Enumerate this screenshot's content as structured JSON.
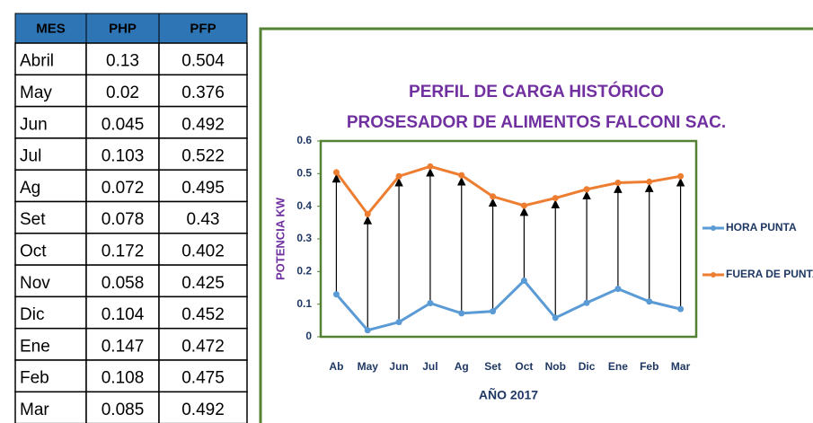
{
  "table": {
    "header": [
      "MES",
      "PHP",
      "PFP"
    ],
    "rows": [
      [
        "Abril",
        0.13,
        0.504
      ],
      [
        "May",
        0.02,
        0.376
      ],
      [
        "Jun",
        0.045,
        0.492
      ],
      [
        "Jul",
        0.103,
        0.522
      ],
      [
        "Ag",
        0.072,
        0.495
      ],
      [
        "Set",
        0.078,
        0.43
      ],
      [
        "Oct",
        0.172,
        0.402
      ],
      [
        "Nov",
        0.058,
        0.425
      ],
      [
        "Dic",
        0.104,
        0.452
      ],
      [
        "Ene",
        0.147,
        0.472
      ],
      [
        "Feb",
        0.108,
        0.475
      ],
      [
        "Mar",
        0.085,
        0.492
      ]
    ]
  },
  "chart_data": {
    "type": "line",
    "title": [
      "PERFIL DE CARGA HISTÓRICO",
      "PROSESADOR DE ALIMENTOS FALCONI SAC."
    ],
    "y_label": "POTENCIA KW",
    "x_label": "AÑO 2017",
    "categories": [
      "Ab",
      "May",
      "Jun",
      "Jul",
      "Ag",
      "Set",
      "Oct",
      "Nob",
      "Dic",
      "Ene",
      "Feb",
      "Mar"
    ],
    "series": [
      {
        "name": "HORA PUNTA",
        "color": "#5b9bd5",
        "values": [
          0.13,
          0.02,
          0.045,
          0.103,
          0.072,
          0.078,
          0.172,
          0.058,
          0.104,
          0.147,
          0.108,
          0.085
        ]
      },
      {
        "name": "FUERA DE PUNTA",
        "color": "#ed7d31",
        "values": [
          0.504,
          0.376,
          0.492,
          0.522,
          0.495,
          0.43,
          0.402,
          0.425,
          0.452,
          0.472,
          0.475,
          0.492
        ]
      }
    ],
    "ylim": [
      0,
      0.6
    ],
    "yticks": [
      0,
      0.1,
      0.2,
      0.3,
      0.4,
      0.5,
      0.6
    ],
    "legend": "right"
  }
}
